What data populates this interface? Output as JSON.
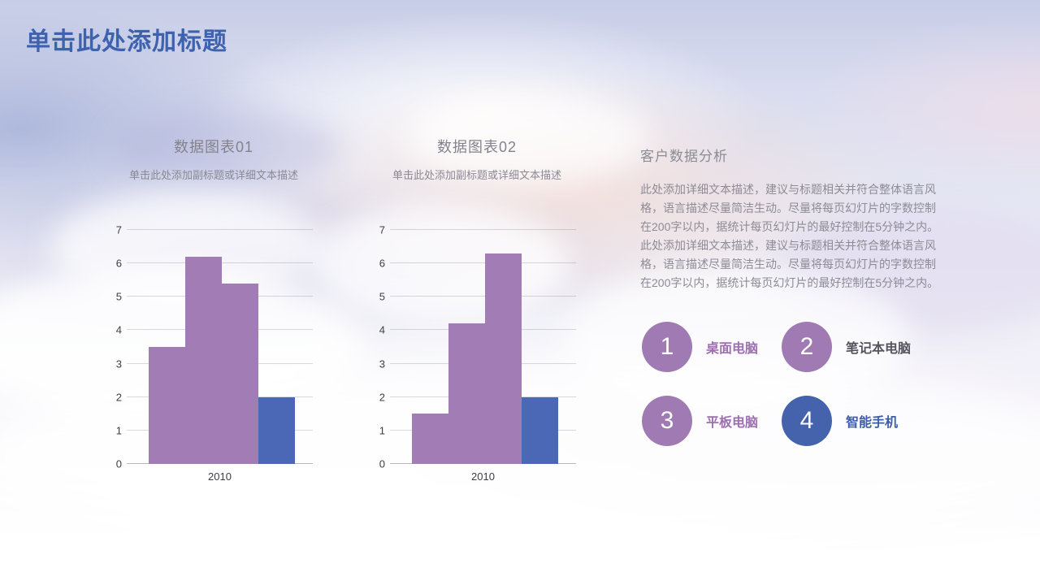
{
  "slide": {
    "title": "单击此处添加标题",
    "title_color": "#3e62ad"
  },
  "chart_data": [
    {
      "type": "bar",
      "title": "数据图表01",
      "subtitle": "单击此处添加副标题或详细文本描述",
      "categories": [
        "2010"
      ],
      "series": [
        {
          "name": "bar-1",
          "color": "#a17cb5",
          "values": [
            3.5
          ]
        },
        {
          "name": "bar-2",
          "color": "#a17cb5",
          "values": [
            6.2
          ]
        },
        {
          "name": "bar-3",
          "color": "#a17cb5",
          "values": [
            5.4
          ]
        },
        {
          "name": "bar-4",
          "color": "#4a68b5",
          "values": [
            2
          ]
        }
      ],
      "xlabel": "",
      "ylabel": "",
      "ylim": [
        0,
        7
      ],
      "ytick_step": 1,
      "grid": true,
      "legend": "none"
    },
    {
      "type": "bar",
      "title": "数据图表02",
      "subtitle": "单击此处添加副标题或详细文本描述",
      "categories": [
        "2010"
      ],
      "series": [
        {
          "name": "bar-1",
          "color": "#a17cb5",
          "values": [
            1.5
          ]
        },
        {
          "name": "bar-2",
          "color": "#a17cb5",
          "values": [
            4.2
          ]
        },
        {
          "name": "bar-3",
          "color": "#a17cb5",
          "values": [
            6.3
          ]
        },
        {
          "name": "bar-4",
          "color": "#4a68b5",
          "values": [
            2
          ]
        }
      ],
      "xlabel": "",
      "ylabel": "",
      "ylim": [
        0,
        7
      ],
      "ytick_step": 1,
      "grid": true,
      "legend": "none"
    }
  ],
  "right_panel": {
    "heading": "客户数据分析",
    "body": "此处添加详细文本描述，建议与标题相关并符合整体语言风\n格，语言描述尽量简洁生动。尽量将每页幻灯片的字数控制\n在200字以内，据统计每页幻灯片的最好控制在5分钟之内。\n此处添加详细文本描述，建议与标题相关并符合整体语言风\n格，语言描述尽量简洁生动。尽量将每页幻灯片的字数控制\n在200字以内，据统计每页幻灯片的最好控制在5分钟之内。",
    "items": [
      {
        "number": "1",
        "label": "桌面电脑",
        "circle_color": "#a07ab3",
        "label_color": "#9c6fb0"
      },
      {
        "number": "2",
        "label": "笔记本电脑",
        "circle_color": "#a07ab3",
        "label_color": "#55545e"
      },
      {
        "number": "3",
        "label": "平板电脑",
        "circle_color": "#a07ab3",
        "label_color": "#9c6fb0"
      },
      {
        "number": "4",
        "label": "智能手机",
        "circle_color": "#4563ac",
        "label_color": "#3c5dab"
      }
    ]
  }
}
